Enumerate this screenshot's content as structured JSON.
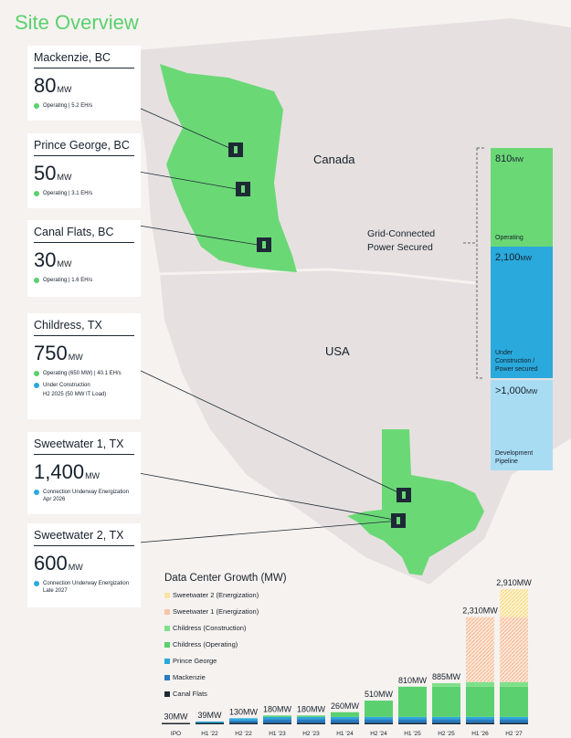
{
  "title": "Site Overview",
  "regions": {
    "canada": "Canada",
    "usa": "USA"
  },
  "sites": [
    {
      "name": "Mackenzie, BC",
      "capacity": "80",
      "unit": "MW",
      "status": "Operating | 5.2 EH/s"
    },
    {
      "name": "Prince George, BC",
      "capacity": "50",
      "unit": "MW",
      "status": "Operating | 3.1 EH/s"
    },
    {
      "name": "Canal Flats, BC",
      "capacity": "30",
      "unit": "MW",
      "status": "Operating | 1.6 EH/s"
    },
    {
      "name": "Childress, TX",
      "capacity": "750",
      "unit": "MW",
      "status": "Operating (650 MW) | 40.1 EH/s",
      "status2": "Under Construction",
      "status2_sub": "H2 2025 (50 MW IT Load)"
    },
    {
      "name": "Sweetwater 1, TX",
      "capacity": "1,400",
      "unit": "MW",
      "status": "Connection Underway Energization Apr 2026"
    },
    {
      "name": "Sweetwater 2, TX",
      "capacity": "600",
      "unit": "MW",
      "status": "Connection Underway Energization Late 2027"
    }
  ],
  "callout": {
    "line1": "Grid-Connected",
    "line2": "Power Secured"
  },
  "capacity": [
    {
      "value": "810",
      "unit": "MW",
      "label": "Operating",
      "color": "#6bd876"
    },
    {
      "value": "2,100",
      "unit": "MW",
      "label": "Under Construction / Power secured",
      "color": "#2aa9dc"
    },
    {
      "value": ">1,000",
      "unit": "MW",
      "label": "Development Pipeline",
      "color": "#a8dcf3"
    }
  ],
  "chart_data": {
    "type": "bar",
    "title": "Data Center Growth (MW)",
    "categories": [
      "IPO",
      "H1 '22",
      "H2 '22",
      "H1 '23",
      "H2 '23",
      "H1 '24",
      "H2 '24",
      "H1 '25",
      "H2 '25",
      "H1 '26",
      "H2 '27"
    ],
    "totals": [
      30,
      39,
      130,
      180,
      180,
      260,
      510,
      810,
      885,
      2310,
      2910
    ],
    "total_labels": [
      "30MW",
      "39MW",
      "130MW",
      "180MW",
      "180MW",
      "260MW",
      "510MW",
      "810MW",
      "885MW",
      "2,310MW",
      "2,910MW"
    ],
    "series": [
      {
        "name": "Canal Flats",
        "color": "#1d2a36",
        "values": [
          30,
          30,
          30,
          30,
          30,
          30,
          30,
          30,
          30,
          30,
          30
        ]
      },
      {
        "name": "Mackenzie",
        "color": "#2a7bbf",
        "values": [
          0,
          0,
          50,
          80,
          80,
          80,
          80,
          80,
          80,
          80,
          80
        ]
      },
      {
        "name": "Prince George",
        "color": "#2aa9dc",
        "values": [
          0,
          9,
          50,
          50,
          50,
          50,
          50,
          50,
          50,
          50,
          50
        ]
      },
      {
        "name": "Childress (Operating)",
        "color": "#5bd06e",
        "values": [
          0,
          0,
          0,
          20,
          20,
          100,
          350,
          650,
          650,
          650,
          650
        ]
      },
      {
        "name": "Childress (Construction)",
        "color": "#7fe08a",
        "values": [
          0,
          0,
          0,
          0,
          0,
          0,
          0,
          0,
          75,
          100,
          100
        ]
      },
      {
        "name": "Sweetwater 1 (Energization)",
        "color": "#f9c5a8",
        "values": [
          0,
          0,
          0,
          0,
          0,
          0,
          0,
          0,
          0,
          1400,
          1400
        ]
      },
      {
        "name": "Sweetwater 2 (Energization)",
        "color": "#fbe3a4",
        "values": [
          0,
          0,
          0,
          0,
          0,
          0,
          0,
          0,
          0,
          0,
          600
        ]
      }
    ],
    "legend_order": [
      "Sweetwater 2 (Energization)",
      "Sweetwater 1 (Energization)",
      "Childress (Construction)",
      "Childress (Operating)",
      "Prince George",
      "Mackenzie",
      "Canal Flats"
    ],
    "ylim": [
      0,
      2910
    ]
  }
}
